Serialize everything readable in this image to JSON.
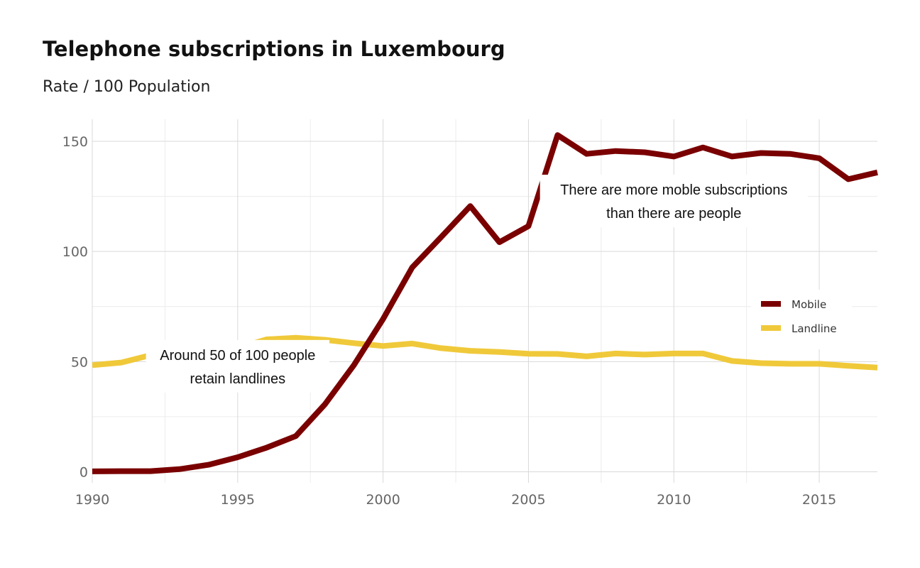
{
  "chart_data": {
    "type": "line",
    "title": "Telephone subscriptions in Luxembourg",
    "subtitle": "Rate / 100 Population",
    "xlabel": "",
    "ylabel": "",
    "x": [
      1990,
      1991,
      1992,
      1993,
      1994,
      1995,
      1996,
      1997,
      1998,
      1999,
      2000,
      2001,
      2002,
      2003,
      2004,
      2005,
      2006,
      2007,
      2008,
      2009,
      2010,
      2011,
      2012,
      2013,
      2014,
      2015,
      2016,
      2017
    ],
    "x_ticks": [
      "1990",
      "1995",
      "2000",
      "2005",
      "2010",
      "2015"
    ],
    "y_ticks": [
      "0",
      "50",
      "100",
      "150"
    ],
    "xlim": [
      1990,
      2017
    ],
    "ylim": [
      -5,
      160
    ],
    "grid": true,
    "legend_position": "right",
    "series": [
      {
        "name": "Mobile",
        "color": "#7a0000",
        "values": [
          0.2,
          0.3,
          0.3,
          1.2,
          3.2,
          6.6,
          11.0,
          16.2,
          30.6,
          48.5,
          69.3,
          92.7,
          106.6,
          120.6,
          104.2,
          111.5,
          152.8,
          144.3,
          145.6,
          145.0,
          143.1,
          147.2,
          143.1,
          144.7,
          144.3,
          142.3,
          132.8,
          135.9
        ]
      },
      {
        "name": "Landline",
        "color": "#f0c93a",
        "values": [
          48.4,
          49.6,
          52.9,
          54.3,
          55.5,
          56.3,
          60.1,
          60.8,
          59.9,
          58.4,
          57.1,
          58.2,
          56.1,
          54.9,
          54.4,
          53.6,
          53.5,
          52.4,
          53.7,
          53.2,
          53.7,
          53.7,
          50.3,
          49.3,
          49.0,
          49.0,
          48.1,
          47.3
        ]
      }
    ],
    "annotations": [
      {
        "lines": [
          "There are more moble subscriptions",
          "than there are people"
        ],
        "x": 2010,
        "y": 120
      },
      {
        "lines": [
          "Around 50 of 100 people",
          "retain landlines"
        ],
        "x": 1995,
        "y": 45
      }
    ]
  }
}
